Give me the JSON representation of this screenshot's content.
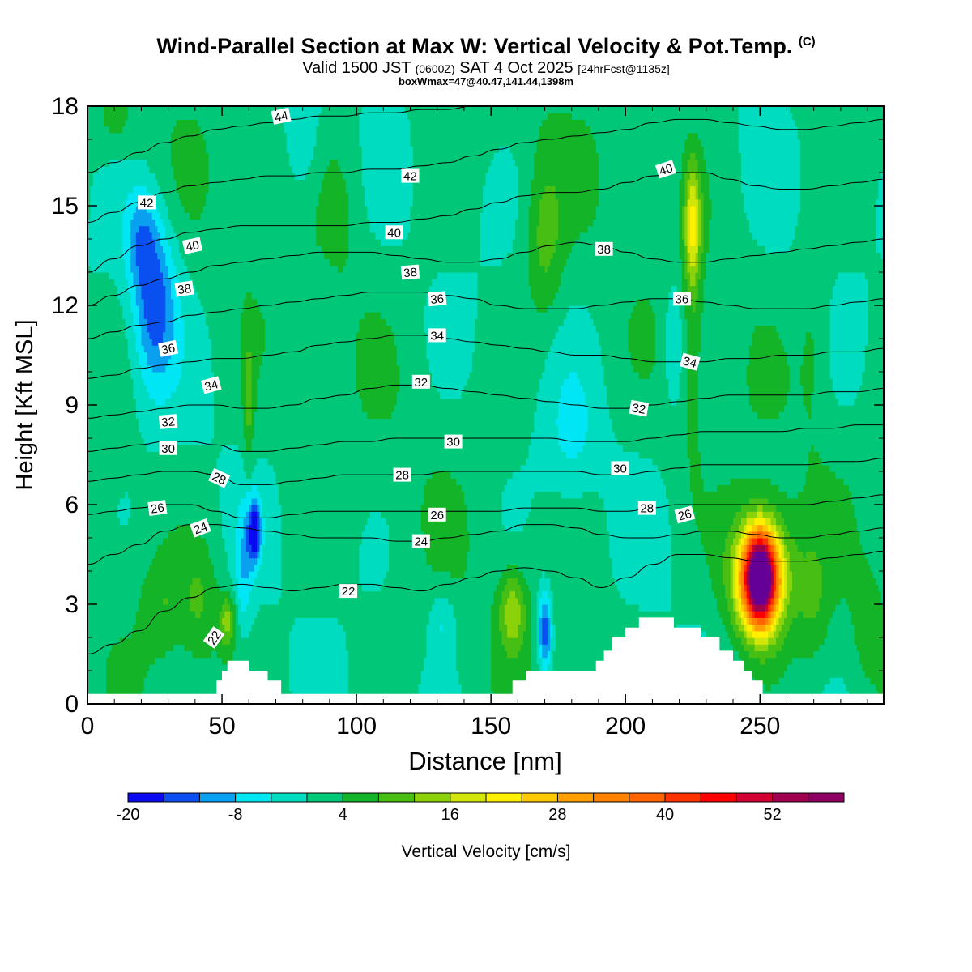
{
  "header": {
    "title": "Wind-Parallel Section at Max W: Vertical Velocity & Pot.Temp.",
    "copyright": "(C)",
    "subtitle_main": "Valid 1500 JST",
    "subtitle_utc": "(0600Z)",
    "subtitle_date": "SAT 4 Oct 2025",
    "subtitle_fcst": "[24hrFcst@1135z]",
    "subtitle2": "boxWmax=47@40.47,141.44,1398m"
  },
  "chart_data": {
    "type": "heatmap",
    "title": "Wind-Parallel Section at Max W: Vertical Velocity & Pot.Temp.",
    "xlabel": "Distance [nm]",
    "ylabel": "Height [Kft MSL]",
    "xlim": [
      0,
      296
    ],
    "ylim": [
      0,
      18
    ],
    "x_ticks": [
      "0",
      "50",
      "100",
      "150",
      "200",
      "250"
    ],
    "y_ticks": [
      "0",
      "3",
      "6",
      "9",
      "12",
      "15",
      "18"
    ],
    "colorbar": {
      "label": "Vertical Velocity [cm/s]",
      "min": -20,
      "max": 60,
      "step": 4,
      "tick_labels": [
        "-20",
        "-8",
        "4",
        "16",
        "28",
        "40",
        "52"
      ],
      "colors": [
        "#0a0af0",
        "#0a50f0",
        "#0aa0f0",
        "#00e6f5",
        "#00dcc0",
        "#00c878",
        "#14b428",
        "#46be14",
        "#8cd20a",
        "#d2e60a",
        "#fff000",
        "#ffc800",
        "#ffa000",
        "#ff8200",
        "#ff6400",
        "#ff3200",
        "#ff0000",
        "#d20032",
        "#a00050",
        "#8c0064",
        "#640096"
      ]
    },
    "terrain": [
      {
        "x": 0,
        "h": 0.3
      },
      {
        "x": 45,
        "h": 0.3
      },
      {
        "x": 48,
        "h": 0.7
      },
      {
        "x": 50,
        "h": 1.0
      },
      {
        "x": 52,
        "h": 1.3
      },
      {
        "x": 58,
        "h": 1.3
      },
      {
        "x": 60,
        "h": 1.0
      },
      {
        "x": 65,
        "h": 1.0
      },
      {
        "x": 67,
        "h": 0.7
      },
      {
        "x": 72,
        "h": 0.3
      },
      {
        "x": 155,
        "h": 0.3
      },
      {
        "x": 158,
        "h": 0.7
      },
      {
        "x": 163,
        "h": 1.0
      },
      {
        "x": 170,
        "h": 1.0
      },
      {
        "x": 180,
        "h": 1.0
      },
      {
        "x": 185,
        "h": 1.0
      },
      {
        "x": 189,
        "h": 1.3
      },
      {
        "x": 192,
        "h": 1.6
      },
      {
        "x": 195,
        "h": 2.0
      },
      {
        "x": 200,
        "h": 2.3
      },
      {
        "x": 205,
        "h": 2.6
      },
      {
        "x": 215,
        "h": 2.6
      },
      {
        "x": 218,
        "h": 2.3
      },
      {
        "x": 228,
        "h": 2.0
      },
      {
        "x": 235,
        "h": 1.6
      },
      {
        "x": 240,
        "h": 1.3
      },
      {
        "x": 244,
        "h": 1.0
      },
      {
        "x": 247,
        "h": 0.7
      },
      {
        "x": 251,
        "h": 0.3
      },
      {
        "x": 296,
        "h": 0.3
      }
    ],
    "w_features": [
      {
        "x": 25,
        "h": 12.0,
        "sx": 8,
        "sh": 2.5,
        "v": -15
      },
      {
        "x": 20,
        "h": 14.0,
        "sx": 6,
        "sh": 1.5,
        "v": -9
      },
      {
        "x": 62,
        "h": 5.2,
        "sx": 2.5,
        "sh": 1.0,
        "v": -18
      },
      {
        "x": 58,
        "h": 4.0,
        "sx": 3,
        "sh": 2.0,
        "v": -7
      },
      {
        "x": 60,
        "h": 9.0,
        "sx": 2,
        "sh": 2.0,
        "v": 8
      },
      {
        "x": 52,
        "h": 2.5,
        "sx": 3,
        "sh": 0.8,
        "v": 12
      },
      {
        "x": 42,
        "h": 3.0,
        "sx": 7,
        "sh": 1.8,
        "v": 6
      },
      {
        "x": 28,
        "h": 3.0,
        "sx": 8,
        "sh": 1.5,
        "v": 5
      },
      {
        "x": 158,
        "h": 2.8,
        "sx": 5,
        "sh": 1.2,
        "v": 13
      },
      {
        "x": 170,
        "h": 2.2,
        "sx": 2.5,
        "sh": 1.2,
        "v": -18
      },
      {
        "x": 132,
        "h": 2.5,
        "sx": 5,
        "sh": 1.0,
        "v": -6
      },
      {
        "x": 170,
        "h": 14.0,
        "sx": 7,
        "sh": 2.5,
        "v": 8
      },
      {
        "x": 225,
        "h": 14.5,
        "sx": 3,
        "sh": 1.8,
        "v": 16
      },
      {
        "x": 225,
        "h": 11.0,
        "sx": 4,
        "sh": 4.0,
        "v": 5
      },
      {
        "x": 218,
        "h": 11.0,
        "sx": 4,
        "sh": 2.0,
        "v": -6
      },
      {
        "x": 250,
        "h": 3.8,
        "sx": 6,
        "sh": 1.3,
        "v": 60
      },
      {
        "x": 250,
        "h": 3.8,
        "sx": 12,
        "sh": 2.0,
        "v": 22
      },
      {
        "x": 270,
        "h": 3.0,
        "sx": 6,
        "sh": 2.0,
        "v": 5
      },
      {
        "x": 290,
        "h": 2.5,
        "sx": 5,
        "sh": 1.5,
        "v": 5
      },
      {
        "x": 10,
        "h": 17.5,
        "sx": 8,
        "sh": 1.0,
        "v": 4
      },
      {
        "x": 95,
        "h": 15.0,
        "sx": 8,
        "sh": 2.5,
        "v": 3
      },
      {
        "x": 180,
        "h": 8.0,
        "sx": 10,
        "sh": 2.0,
        "v": -5
      },
      {
        "x": 270,
        "h": 11.0,
        "sx": 6,
        "sh": 3.0,
        "v": 4
      },
      {
        "x": 80,
        "h": 17.0,
        "sx": 6,
        "sh": 2.0,
        "v": -6
      }
    ],
    "theta_contours": [
      {
        "theta": 22,
        "heights": [
          1.5,
          1.8,
          2.2,
          2.8,
          3.2,
          3.5,
          3.6,
          3.5,
          3.4,
          3.5,
          3.6,
          3.6,
          3.5,
          3.4,
          3.6,
          3.8,
          4.0,
          4.1,
          4.0,
          3.8,
          3.5,
          3.8,
          4.2,
          4.5,
          4.5,
          4.4,
          4.3,
          4.3,
          4.3,
          4.4,
          4.5,
          4.6
        ]
      },
      {
        "theta": 24,
        "heights": [
          4.2,
          4.5,
          4.8,
          5.2,
          5.4,
          5.4,
          5.3,
          5.2,
          5.1,
          5.0,
          5.0,
          5.0,
          4.9,
          4.9,
          5.0,
          5.1,
          5.2,
          5.4,
          5.4,
          5.3,
          5.1,
          5.0,
          5.0,
          5.1,
          5.2,
          5.2,
          5.1,
          5.0,
          5.0,
          5.1,
          5.2,
          5.3
        ]
      },
      {
        "theta": 26,
        "heights": [
          5.7,
          5.8,
          5.9,
          6.0,
          6.0,
          5.8,
          5.6,
          5.6,
          5.7,
          5.8,
          5.8,
          5.8,
          5.8,
          5.8,
          5.8,
          5.8,
          5.8,
          5.9,
          5.9,
          5.9,
          5.8,
          5.8,
          5.9,
          6.0,
          6.0,
          6.0,
          6.0,
          6.0,
          6.0,
          6.1,
          6.2,
          6.3
        ]
      },
      {
        "theta": 28,
        "heights": [
          6.7,
          6.8,
          6.9,
          7.0,
          7.0,
          6.9,
          6.6,
          6.6,
          6.7,
          6.8,
          6.9,
          6.9,
          6.9,
          6.9,
          7.0,
          7.0,
          7.0,
          7.0,
          7.0,
          7.0,
          6.9,
          6.9,
          7.0,
          7.1,
          7.2,
          7.2,
          7.2,
          7.2,
          7.2,
          7.3,
          7.3,
          7.4
        ]
      },
      {
        "theta": 30,
        "heights": [
          7.6,
          7.7,
          7.8,
          7.9,
          7.9,
          7.8,
          7.6,
          7.6,
          7.7,
          7.8,
          7.9,
          7.9,
          8.0,
          8.0,
          8.0,
          8.0,
          8.0,
          8.0,
          8.0,
          7.9,
          7.9,
          7.9,
          8.0,
          8.1,
          8.2,
          8.2,
          8.2,
          8.2,
          8.3,
          8.3,
          8.4,
          8.4
        ]
      },
      {
        "theta": 32,
        "heights": [
          8.6,
          8.7,
          8.8,
          8.9,
          9.0,
          9.0,
          8.9,
          8.9,
          9.0,
          9.2,
          9.3,
          9.5,
          9.6,
          9.6,
          9.5,
          9.4,
          9.3,
          9.2,
          9.1,
          9.0,
          8.9,
          8.9,
          9.0,
          9.1,
          9.2,
          9.3,
          9.3,
          9.3,
          9.3,
          9.4,
          9.4,
          9.5
        ]
      },
      {
        "theta": 34,
        "heights": [
          9.8,
          9.9,
          10.1,
          10.2,
          10.3,
          10.4,
          10.4,
          10.5,
          10.6,
          10.8,
          10.9,
          11.0,
          11.1,
          11.1,
          11.0,
          10.9,
          10.8,
          10.7,
          10.6,
          10.5,
          10.5,
          10.4,
          10.3,
          10.3,
          10.3,
          10.4,
          10.4,
          10.5,
          10.5,
          10.6,
          10.6,
          10.7
        ]
      },
      {
        "theta": 36,
        "heights": [
          11.0,
          11.2,
          11.4,
          11.5,
          11.7,
          11.8,
          11.9,
          12.0,
          12.1,
          12.2,
          12.3,
          12.4,
          12.4,
          12.4,
          12.3,
          12.2,
          12.0,
          11.9,
          11.9,
          11.9,
          12.0,
          12.1,
          12.2,
          12.2,
          12.1,
          12.0,
          11.9,
          11.9,
          11.9,
          12.0,
          12.1,
          12.2
        ]
      },
      {
        "theta": 38,
        "heights": [
          12.0,
          12.3,
          12.6,
          12.8,
          13.0,
          13.2,
          13.3,
          13.4,
          13.5,
          13.6,
          13.6,
          13.6,
          13.5,
          13.4,
          13.3,
          13.3,
          13.4,
          13.6,
          13.8,
          13.9,
          13.8,
          13.6,
          13.4,
          13.3,
          13.3,
          13.4,
          13.5,
          13.6,
          13.7,
          13.8,
          13.9,
          14.0
        ]
      },
      {
        "theta": 40,
        "heights": [
          13.0,
          13.4,
          13.8,
          14.0,
          14.2,
          14.3,
          14.4,
          14.4,
          14.4,
          14.4,
          14.4,
          14.5,
          14.5,
          14.6,
          14.7,
          14.9,
          15.1,
          15.3,
          15.4,
          15.4,
          15.5,
          15.7,
          15.9,
          16.0,
          16.0,
          15.8,
          15.6,
          15.5,
          15.5,
          15.6,
          15.7,
          15.8
        ]
      },
      {
        "theta": 42,
        "heights": [
          14.5,
          14.8,
          15.1,
          15.4,
          15.6,
          15.7,
          15.8,
          15.9,
          15.9,
          16.0,
          16.0,
          16.1,
          16.1,
          16.2,
          16.3,
          16.5,
          16.7,
          16.9,
          17.0,
          17.1,
          17.2,
          17.3,
          17.5,
          17.6,
          17.6,
          17.5,
          17.4,
          17.3,
          17.3,
          17.4,
          17.5,
          17.6
        ]
      },
      {
        "theta": 44,
        "heights": [
          16.0,
          16.3,
          16.6,
          16.9,
          17.1,
          17.3,
          17.4,
          17.5,
          17.6,
          17.7,
          17.7,
          17.8,
          17.8,
          17.9,
          17.9,
          18.0,
          18.0,
          18.1,
          18.1,
          18.2,
          18.2,
          18.2,
          18.2,
          18.2,
          18.2,
          18.2,
          18.2,
          18.2,
          18.2,
          18.2,
          18.2,
          18.2
        ]
      }
    ],
    "contour_labels": [
      {
        "x": 72,
        "h": 17.7,
        "text": "44",
        "rot": -12
      },
      {
        "x": 22,
        "h": 15.1,
        "text": "42",
        "rot": 0
      },
      {
        "x": 120,
        "h": 15.9,
        "text": "42",
        "rot": 0
      },
      {
        "x": 39,
        "h": 13.8,
        "text": "40",
        "rot": -12
      },
      {
        "x": 114,
        "h": 14.2,
        "text": "40",
        "rot": 0
      },
      {
        "x": 215,
        "h": 16.1,
        "text": "40",
        "rot": -18
      },
      {
        "x": 36,
        "h": 12.5,
        "text": "38",
        "rot": -8
      },
      {
        "x": 120,
        "h": 13.0,
        "text": "38",
        "rot": -5
      },
      {
        "x": 192,
        "h": 13.7,
        "text": "38",
        "rot": 0
      },
      {
        "x": 30,
        "h": 10.7,
        "text": "36",
        "rot": -12
      },
      {
        "x": 130,
        "h": 12.2,
        "text": "36",
        "rot": -5
      },
      {
        "x": 221,
        "h": 12.2,
        "text": "36",
        "rot": 0
      },
      {
        "x": 46,
        "h": 9.6,
        "text": "34",
        "rot": -15
      },
      {
        "x": 130,
        "h": 11.1,
        "text": "34",
        "rot": 0
      },
      {
        "x": 224,
        "h": 10.3,
        "text": "34",
        "rot": 15
      },
      {
        "x": 30,
        "h": 8.5,
        "text": "32",
        "rot": -5
      },
      {
        "x": 124,
        "h": 9.7,
        "text": "32",
        "rot": 0
      },
      {
        "x": 205,
        "h": 8.9,
        "text": "32",
        "rot": 10
      },
      {
        "x": 30,
        "h": 7.7,
        "text": "30",
        "rot": 0
      },
      {
        "x": 136,
        "h": 7.9,
        "text": "30",
        "rot": 0
      },
      {
        "x": 198,
        "h": 7.1,
        "text": "30",
        "rot": 0
      },
      {
        "x": 49,
        "h": 6.8,
        "text": "28",
        "rot": 25
      },
      {
        "x": 117,
        "h": 6.9,
        "text": "28",
        "rot": 0
      },
      {
        "x": 208,
        "h": 5.9,
        "text": "28",
        "rot": 0
      },
      {
        "x": 26,
        "h": 5.9,
        "text": "26",
        "rot": -8
      },
      {
        "x": 130,
        "h": 5.7,
        "text": "26",
        "rot": 0
      },
      {
        "x": 222,
        "h": 5.7,
        "text": "26",
        "rot": -15
      },
      {
        "x": 42,
        "h": 5.3,
        "text": "24",
        "rot": -20
      },
      {
        "x": 124,
        "h": 4.9,
        "text": "24",
        "rot": 0
      },
      {
        "x": 97,
        "h": 3.4,
        "text": "22",
        "rot": 0
      },
      {
        "x": 47,
        "h": 2.0,
        "text": "22",
        "rot": -55
      }
    ]
  }
}
